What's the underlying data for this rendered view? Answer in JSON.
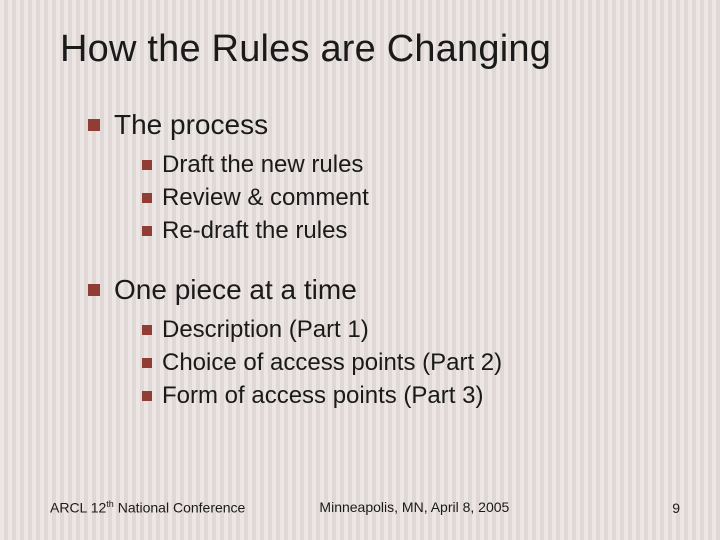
{
  "slide": {
    "title": "How the Rules are Changing",
    "bullet_color": "#903e35",
    "background_stripe_a": "#ece6e4",
    "background_stripe_b": "#e0d8d6",
    "title_fontsize": 38,
    "level1_fontsize": 28,
    "level2_fontsize": 24,
    "sections": [
      {
        "label": "The process",
        "items": [
          "Draft the new rules",
          "Review & comment",
          "Re-draft the rules"
        ]
      },
      {
        "label": "One piece at a time",
        "items": [
          "Description (Part 1)",
          "Choice of access points (Part 2)",
          "Form of access points (Part 3)"
        ]
      }
    ],
    "footer": {
      "left_prefix": "ARCL 12",
      "left_super": "th",
      "left_suffix": " National Conference",
      "center": "Minneapolis, MN, April 8, 2005",
      "page": "9",
      "fontsize": 14
    }
  }
}
